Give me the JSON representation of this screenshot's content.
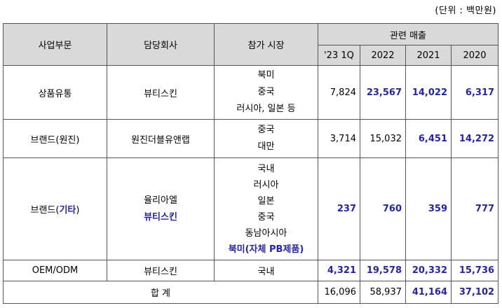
{
  "unit_note": "(단위 : 백만원)",
  "headers": {
    "division": "사업부문",
    "company": "담당회사",
    "market": "참가 시장",
    "sales": "관련 매출",
    "years": [
      "'23 1Q",
      "2022",
      "2021",
      "2020"
    ]
  },
  "rows": [
    {
      "division": "상품유통",
      "company": "뷰티스킨",
      "markets": [
        "북미",
        "중국",
        "러시아, 일본 등"
      ],
      "values": [
        "7,824",
        "23,567",
        "14,022",
        "6,317"
      ]
    },
    {
      "division": "브랜드(원진)",
      "company": "원진더블유앤랩",
      "markets": [
        "중국",
        "대만"
      ],
      "values": [
        "3,714",
        "15,032",
        "6,451",
        "14,272"
      ]
    },
    {
      "division_prefix": "브랜드(",
      "division_highlight": "기타",
      "division_suffix": ")",
      "company_lines": [
        "율리아엘",
        "뷰티스킨"
      ],
      "markets": [
        "국내",
        "러시아",
        "일본",
        "중국",
        "동남아시아",
        "북미(자체 PB제품)"
      ],
      "values": [
        "237",
        "760",
        "359",
        "777"
      ]
    },
    {
      "division": "OEM/ODM",
      "company": "뷰티스킨",
      "markets": [
        "국내"
      ],
      "values": [
        "4,321",
        "19,578",
        "20,332",
        "15,736"
      ]
    }
  ],
  "total": {
    "label": "합 계",
    "values": [
      "16,096",
      "58,937",
      "41,164",
      "37,102"
    ]
  },
  "colors": {
    "header_bg": "#d9d9d9",
    "highlight": "#2323b4",
    "border": "#555555"
  }
}
